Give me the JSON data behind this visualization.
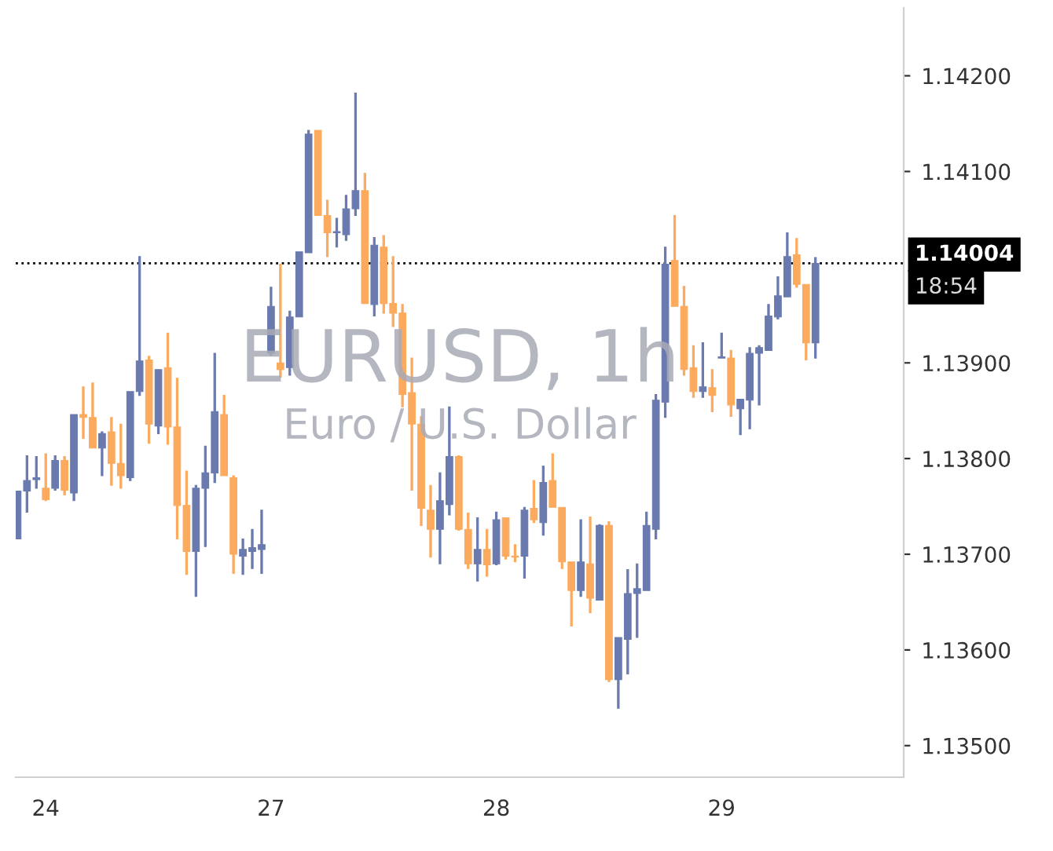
{
  "chart_data": {
    "type": "candlestick",
    "title": "EURUSD, 1h",
    "subtitle": "Euro / U.S. Dollar",
    "categories": [
      null,
      null,
      null,
      "24",
      null,
      null,
      null,
      null,
      null,
      null,
      null,
      null,
      null,
      null,
      null,
      null,
      null,
      null,
      null,
      null,
      null,
      null,
      null,
      null,
      null,
      null,
      null,
      "27",
      null,
      null,
      null,
      null,
      null,
      null,
      null,
      null,
      null,
      null,
      null,
      null,
      null,
      null,
      null,
      null,
      null,
      null,
      null,
      null,
      null,
      null,
      null,
      "28",
      null,
      null,
      null,
      null,
      null,
      null,
      null,
      null,
      null,
      null,
      null,
      null,
      null,
      null,
      null,
      null,
      null,
      null,
      null,
      null,
      null,
      null,
      null,
      "29",
      null,
      null,
      null,
      null,
      null,
      null,
      null,
      null,
      null,
      null
    ],
    "ohlc": [
      [
        1.13716,
        1.13766,
        1.13716,
        1.13766
      ],
      [
        1.13766,
        1.13803,
        1.13744,
        1.13777
      ],
      [
        1.13778,
        1.13802,
        1.13769,
        1.1378
      ],
      [
        1.13769,
        1.13805,
        1.13756,
        1.13757
      ],
      [
        1.13769,
        1.13803,
        1.13767,
        1.13798
      ],
      [
        1.13798,
        1.13802,
        1.13762,
        1.13767
      ],
      [
        1.13764,
        1.13846,
        1.13756,
        1.13846
      ],
      [
        1.13846,
        1.13875,
        1.13821,
        1.13843
      ],
      [
        1.13843,
        1.13879,
        1.13811,
        1.13811
      ],
      [
        1.13811,
        1.13828,
        1.13782,
        1.13826
      ],
      [
        1.13828,
        1.13843,
        1.13772,
        1.13795
      ],
      [
        1.13795,
        1.13836,
        1.13769,
        1.13782
      ],
      [
        1.1378,
        1.1387,
        1.13777,
        1.1387
      ],
      [
        1.1387,
        1.14011,
        1.13866,
        1.13902
      ],
      [
        1.13903,
        1.13907,
        1.13816,
        1.13836
      ],
      [
        1.13834,
        1.13893,
        1.13826,
        1.13893
      ],
      [
        1.13895,
        1.13931,
        1.13815,
        1.13833
      ],
      [
        1.13833,
        1.13884,
        1.13716,
        1.13751
      ],
      [
        1.13751,
        1.13787,
        1.13679,
        1.13703
      ],
      [
        1.13703,
        1.13772,
        1.13656,
        1.13769
      ],
      [
        1.13769,
        1.13813,
        1.13708,
        1.13785
      ],
      [
        1.13785,
        1.1391,
        1.13775,
        1.13849
      ],
      [
        1.13846,
        1.13866,
        1.13782,
        1.13782
      ],
      [
        1.1378,
        1.13782,
        1.1368,
        1.137
      ],
      [
        1.13698,
        1.13716,
        1.13679,
        1.13705
      ],
      [
        1.13703,
        1.13726,
        1.13685,
        1.13707
      ],
      [
        1.13705,
        1.13746,
        1.1368,
        1.1371
      ],
      [
        1.1391,
        1.13979,
        1.13908,
        1.13959
      ],
      [
        1.139,
        1.14003,
        1.13885,
        1.13893
      ],
      [
        1.13895,
        1.13954,
        1.13887,
        1.13948
      ],
      [
        1.13948,
        1.14016,
        1.13948,
        1.14016
      ],
      [
        1.14015,
        1.14143,
        1.14015,
        1.14139
      ],
      [
        1.14143,
        1.14143,
        1.14054,
        1.14054
      ],
      [
        1.14054,
        1.1407,
        1.14011,
        1.14036
      ],
      [
        1.14036,
        1.14051,
        1.14021,
        1.14037
      ],
      [
        1.14034,
        1.14075,
        1.14028,
        1.14061
      ],
      [
        1.14061,
        1.14182,
        1.14054,
        1.1408
      ],
      [
        1.1408,
        1.14098,
        1.13962,
        1.13962
      ],
      [
        1.13961,
        1.14031,
        1.13949,
        1.14023
      ],
      [
        1.14021,
        1.14033,
        1.13952,
        1.13962
      ],
      [
        1.13962,
        1.14011,
        1.13938,
        1.13952
      ],
      [
        1.13952,
        1.13961,
        1.13854,
        1.13867
      ],
      [
        1.13869,
        1.13905,
        1.13767,
        1.13836
      ],
      [
        1.13836,
        1.13844,
        1.1373,
        1.13748
      ],
      [
        1.13746,
        1.13772,
        1.13697,
        1.13726
      ],
      [
        1.13726,
        1.13785,
        1.1369,
        1.13756
      ],
      [
        1.13752,
        1.13854,
        1.13741,
        1.13802
      ],
      [
        1.13802,
        1.13803,
        1.13725,
        1.13726
      ],
      [
        1.13726,
        1.13743,
        1.13685,
        1.1369
      ],
      [
        1.1369,
        1.13738,
        1.13672,
        1.13705
      ],
      [
        1.13705,
        1.13726,
        1.13677,
        1.13689
      ],
      [
        1.1369,
        1.13744,
        1.13689,
        1.13736
      ],
      [
        1.13738,
        1.13738,
        1.13695,
        1.13698
      ],
      [
        1.13698,
        1.1371,
        1.13692,
        1.13697
      ],
      [
        1.13698,
        1.13749,
        1.13675,
        1.13746
      ],
      [
        1.13748,
        1.13777,
        1.13733,
        1.13736
      ],
      [
        1.13733,
        1.13792,
        1.1372,
        1.13775
      ],
      [
        1.13777,
        1.13805,
        1.13749,
        1.13749
      ],
      [
        1.13749,
        1.13749,
        1.13685,
        1.13692
      ],
      [
        1.13692,
        1.13692,
        1.13625,
        1.13662
      ],
      [
        1.13662,
        1.13736,
        1.13656,
        1.13692
      ],
      [
        1.1369,
        1.13739,
        1.13639,
        1.13654
      ],
      [
        1.13652,
        1.13731,
        1.13652,
        1.1373
      ],
      [
        1.1373,
        1.13734,
        1.13567,
        1.13569
      ],
      [
        1.13569,
        1.13613,
        1.13539,
        1.13613
      ],
      [
        1.13611,
        1.13684,
        1.13575,
        1.13659
      ],
      [
        1.13659,
        1.1369,
        1.13613,
        1.13664
      ],
      [
        1.13662,
        1.13744,
        1.13662,
        1.1373
      ],
      [
        1.13726,
        1.13867,
        1.13716,
        1.13861
      ],
      [
        1.13859,
        1.14021,
        1.13843,
        1.14003
      ],
      [
        1.14007,
        1.14054,
        1.13959,
        1.13959
      ],
      [
        1.13959,
        1.1398,
        1.13887,
        1.13893
      ],
      [
        1.13895,
        1.13918,
        1.13864,
        1.1387
      ],
      [
        1.1387,
        1.13921,
        1.13864,
        1.13875
      ],
      [
        1.13874,
        1.13893,
        1.13849,
        1.13866
      ],
      [
        1.13905,
        1.13931,
        1.13905,
        1.13906
      ],
      [
        1.13905,
        1.13913,
        1.13844,
        1.13856
      ],
      [
        1.13852,
        1.13862,
        1.13825,
        1.13862
      ],
      [
        1.13861,
        1.13916,
        1.13831,
        1.1391
      ],
      [
        1.1391,
        1.13918,
        1.13856,
        1.13916
      ],
      [
        1.13913,
        1.13961,
        1.13913,
        1.13949
      ],
      [
        1.13948,
        1.1399,
        1.13946,
        1.1397
      ],
      [
        1.13969,
        1.14036,
        1.13969,
        1.14011
      ],
      [
        1.14013,
        1.1403,
        1.13979,
        1.13982
      ],
      [
        1.13982,
        1.13982,
        1.13903,
        1.13921
      ],
      [
        1.13921,
        1.1401,
        1.13905,
        1.14004
      ]
    ],
    "colors": [
      "#6a7aae",
      "#6a7aae",
      "#6a7aae",
      "#fbaa5e",
      "#6a7aae",
      "#fbaa5e",
      "#6a7aae",
      "#fbaa5e",
      "#fbaa5e",
      "#6a7aae",
      "#fbaa5e",
      "#fbaa5e",
      "#6a7aae",
      "#6a7aae",
      "#fbaa5e",
      "#6a7aae",
      "#fbaa5e",
      "#fbaa5e",
      "#fbaa5e",
      "#6a7aae",
      "#6a7aae",
      "#6a7aae",
      "#fbaa5e",
      "#fbaa5e",
      "#6a7aae",
      "#6a7aae",
      "#6a7aae",
      "#6a7aae",
      "#fbaa5e",
      "#6a7aae",
      "#6a7aae",
      "#6a7aae",
      "#fbaa5e",
      "#fbaa5e",
      "#6a7aae",
      "#6a7aae",
      "#6a7aae",
      "#fbaa5e",
      "#6a7aae",
      "#fbaa5e",
      "#fbaa5e",
      "#fbaa5e",
      "#fbaa5e",
      "#fbaa5e",
      "#fbaa5e",
      "#6a7aae",
      "#6a7aae",
      "#fbaa5e",
      "#fbaa5e",
      "#6a7aae",
      "#fbaa5e",
      "#6a7aae",
      "#fbaa5e",
      "#fbaa5e",
      "#6a7aae",
      "#fbaa5e",
      "#6a7aae",
      "#fbaa5e",
      "#fbaa5e",
      "#fbaa5e",
      "#6a7aae",
      "#fbaa5e",
      "#6a7aae",
      "#fbaa5e",
      "#6a7aae",
      "#6a7aae",
      "#6a7aae",
      "#6a7aae",
      "#6a7aae",
      "#6a7aae",
      "#fbaa5e",
      "#fbaa5e",
      "#fbaa5e",
      "#6a7aae",
      "#fbaa5e",
      "#6a7aae",
      "#fbaa5e",
      "#6a7aae",
      "#6a7aae",
      "#6a7aae",
      "#6a7aae",
      "#6a7aae",
      "#6a7aae",
      "#fbaa5e",
      "#fbaa5e",
      "#6a7aae"
    ],
    "ylim": [
      1.13467,
      1.14271
    ],
    "yticks": [
      {
        "value": 1.135,
        "label": "1.13500"
      },
      {
        "value": 1.136,
        "label": "1.13600"
      },
      {
        "value": 1.137,
        "label": "1.13700"
      },
      {
        "value": 1.138,
        "label": "1.13800"
      },
      {
        "value": 1.139,
        "label": "1.13900"
      },
      {
        "value": 1.141,
        "label": "1.14100"
      },
      {
        "value": 1.142,
        "label": "1.14200"
      }
    ],
    "ref_lines": [
      {
        "axis": "y",
        "value": 1.14004,
        "label": "1.14004",
        "color": "#000000",
        "line_style": "dotted"
      }
    ],
    "annotations": [
      "18:54"
    ]
  }
}
